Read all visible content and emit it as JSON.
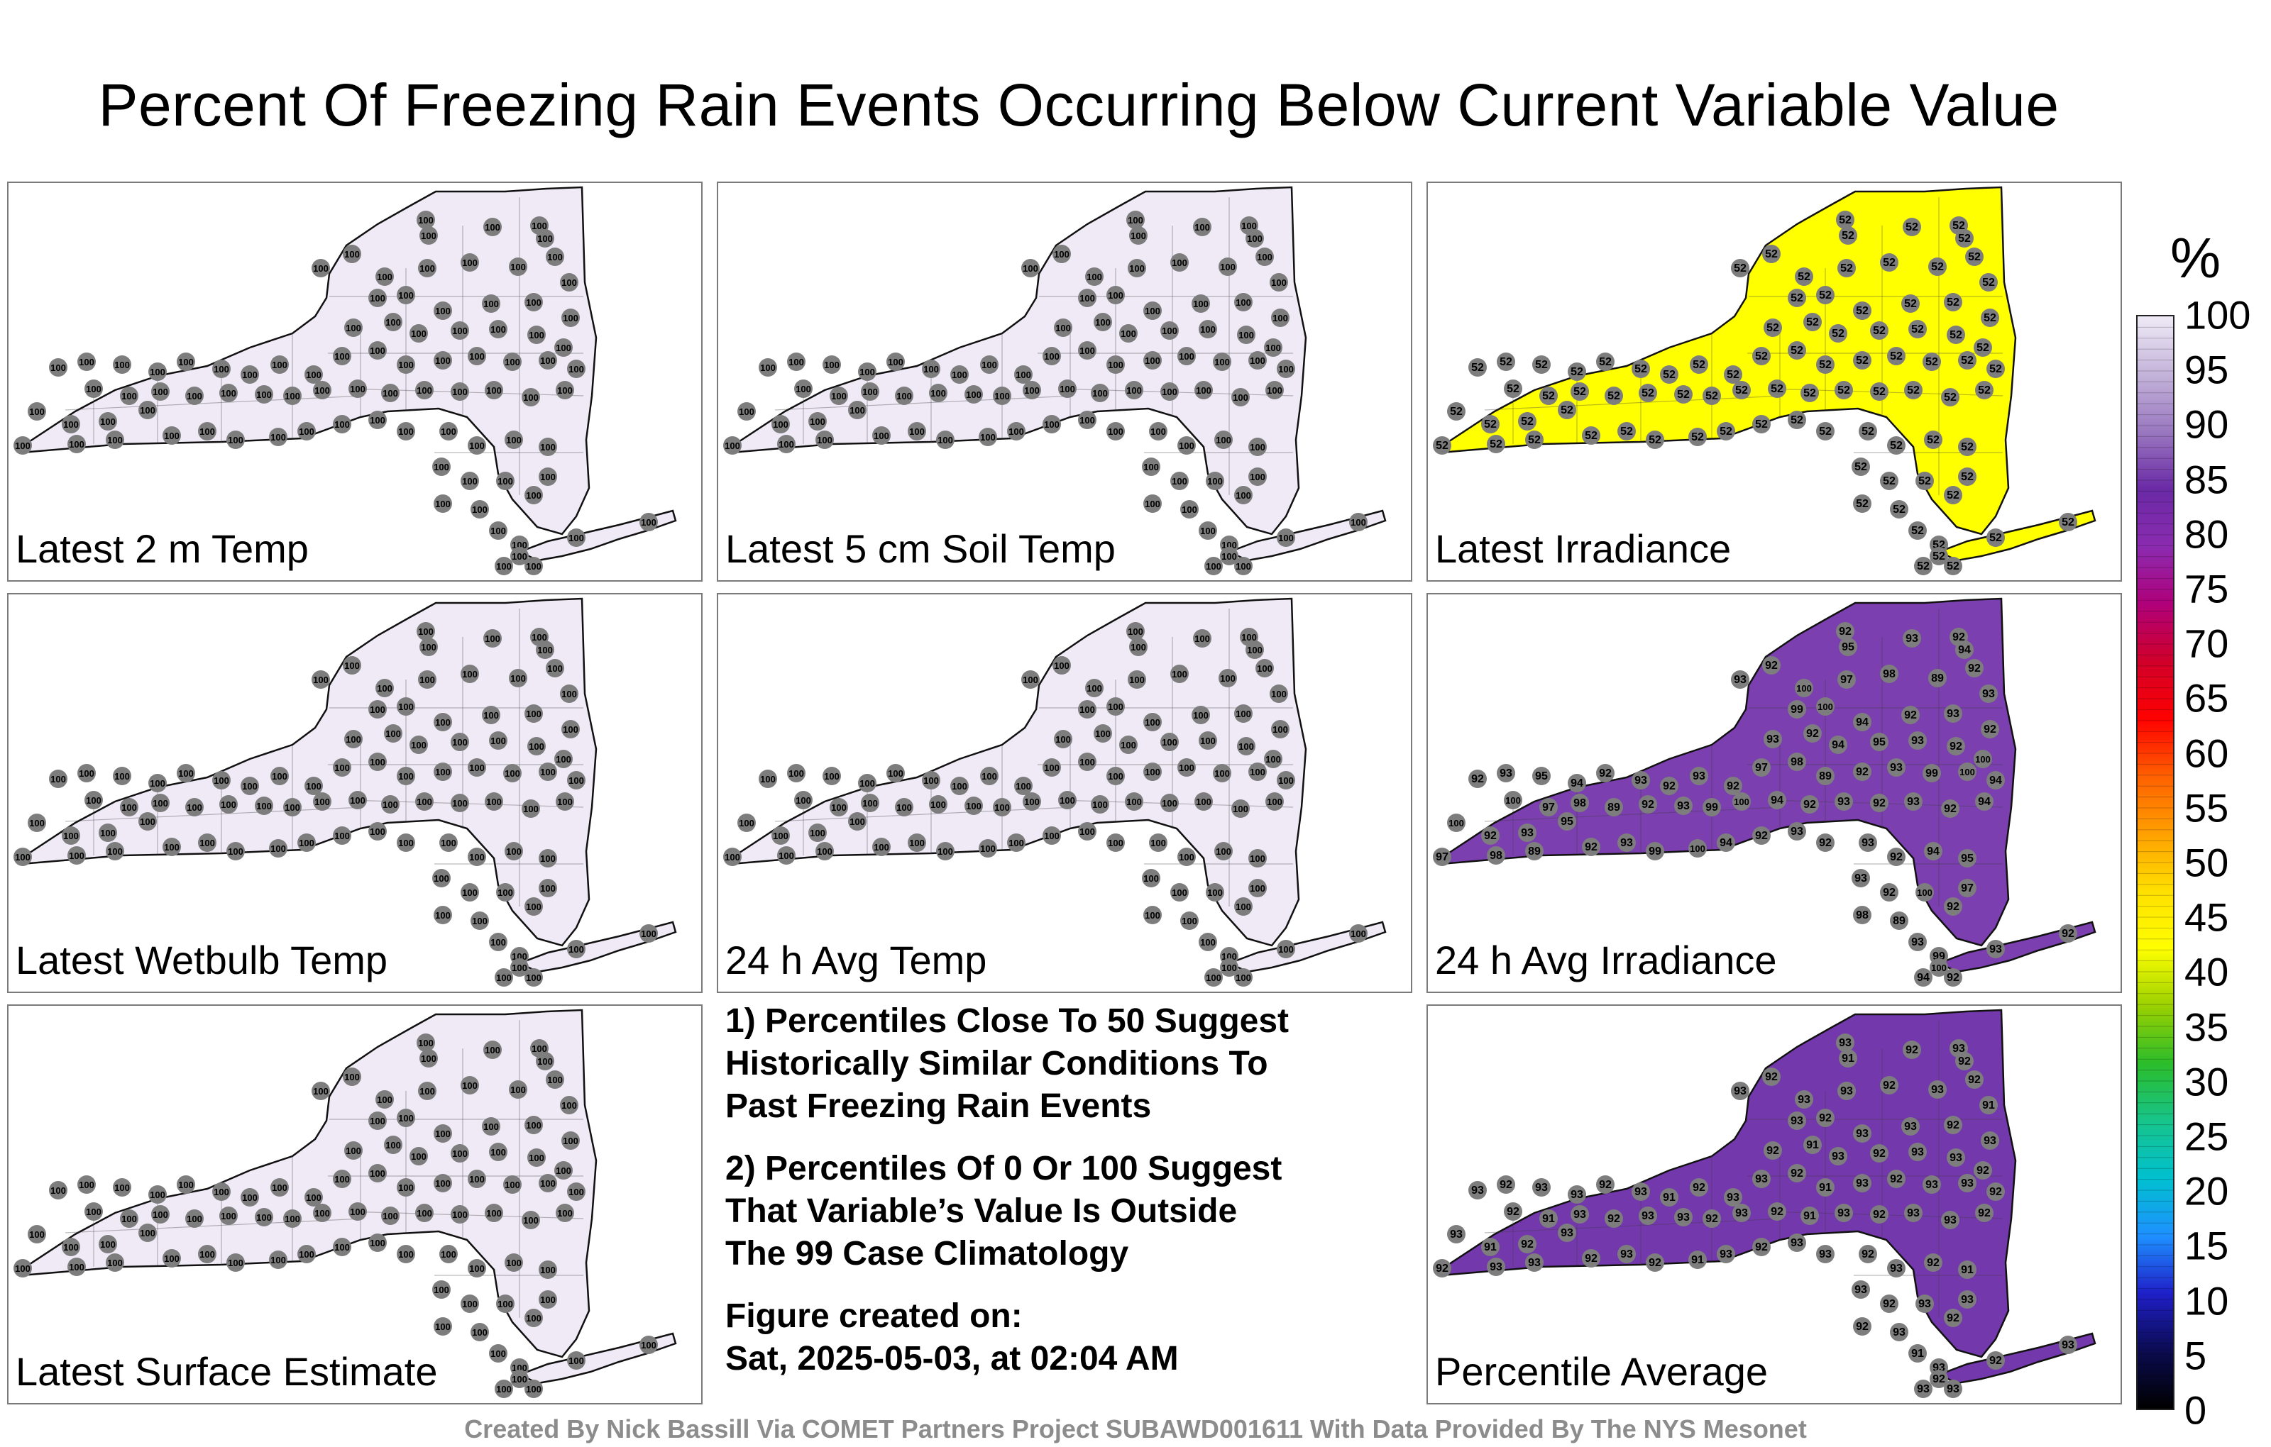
{
  "title": "Percent Of Freezing Rain Events Occurring Below Current Variable Value",
  "unit": "%",
  "colorbar": {
    "ticks": [
      "100",
      "95",
      "90",
      "85",
      "80",
      "75",
      "70",
      "65",
      "60",
      "55",
      "50",
      "45",
      "40",
      "35",
      "30",
      "25",
      "20",
      "15",
      "10",
      "5",
      "0"
    ],
    "stops": [
      "#000000",
      "#0b0b50",
      "#1f1fc8",
      "#1e90ff",
      "#00c0d0",
      "#17c48a",
      "#2bbd2b",
      "#9ad000",
      "#ffff00",
      "#ffe000",
      "#ffa000",
      "#ff6000",
      "#ff0000",
      "#d0002a",
      "#b0007a",
      "#8a2bb0",
      "#6a2aa5",
      "#9a78c0",
      "#c4b4da",
      "#efeaf6"
    ]
  },
  "panels": [
    {
      "label": "Latest 2 m Temp",
      "value": "100",
      "fill": "#efeaf6"
    },
    {
      "label": "Latest 5 cm Soil Temp",
      "value": "100",
      "fill": "#efeaf6"
    },
    {
      "label": "Latest Irradiance",
      "value": "52",
      "fill": "#ffff00"
    },
    {
      "label": "Latest Wetbulb Temp",
      "value": "100",
      "fill": "#efeaf6"
    },
    {
      "label": "24 h Avg Temp",
      "value": "100",
      "fill": "#efeaf6"
    },
    {
      "label": "24 h Avg Irradiance",
      "value": "92",
      "fill": "#7b3fb0"
    },
    {
      "label": "Latest Surface Estimate",
      "value": "100",
      "fill": "#efeaf6"
    },
    {
      "label": "Percentile Average",
      "value": "93",
      "fill": "#7438ad"
    }
  ],
  "notes": {
    "note1": [
      "1) Percentiles Close To 50 Suggest",
      "Historically Similar Conditions To",
      "Past Freezing Rain Events"
    ],
    "note2": [
      "2) Percentiles Of 0 Or 100 Suggest",
      "That Variable’s Value Is Outside",
      "The 99 Case Climatology"
    ],
    "created": [
      "Figure created on:",
      "Sat, 2025-05-03, at 02:04 AM"
    ]
  },
  "credit": "Created By Nick Bassill Via COMET Partners Project SUBAWD001611 With Data Provided By The NYS Mesonet",
  "chart_data": {
    "type": "heatmap",
    "title": "Percent Of Freezing Rain Events Occurring Below Current Variable Value",
    "colorbar_range": [
      0,
      100
    ],
    "panels": [
      {
        "name": "Latest 2 m Temp",
        "station_value": 100
      },
      {
        "name": "Latest 5 cm Soil Temp",
        "station_value": 100
      },
      {
        "name": "Latest Irradiance",
        "station_value": 52
      },
      {
        "name": "Latest Wetbulb Temp",
        "station_value": 100
      },
      {
        "name": "24 h Avg Temp",
        "station_value": 100
      },
      {
        "name": "24 h Avg Irradiance",
        "station_values": [
          92,
          93,
          94,
          95,
          97,
          98,
          99,
          100,
          89
        ]
      },
      {
        "name": "Latest Surface Estimate",
        "station_value": 100
      },
      {
        "name": "Percentile Average",
        "station_values": [
          92,
          93,
          91
        ]
      }
    ]
  }
}
